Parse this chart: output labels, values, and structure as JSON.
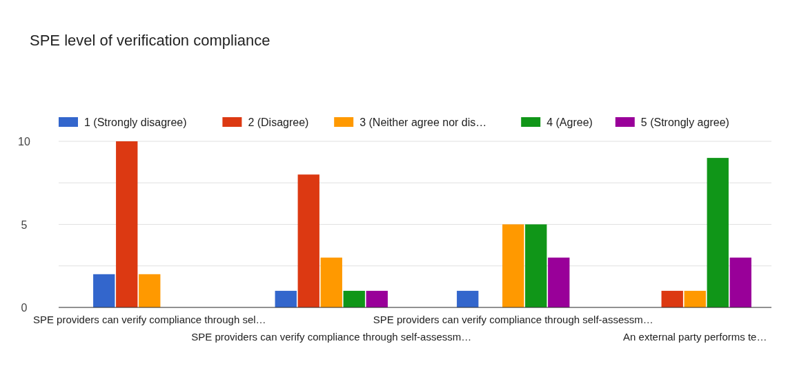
{
  "chart_data": {
    "type": "bar",
    "title": "SPE level of verification compliance",
    "categories": [
      "SPE providers can verify compliance through sel…",
      "SPE providers can verify compliance through self-assessm…",
      "SPE providers can verify compliance through self-assessm…",
      "An external party performs te…"
    ],
    "series": [
      {
        "name": "1 (Strongly disagree)",
        "color": "#3366cc",
        "values": [
          2,
          1,
          1,
          0
        ]
      },
      {
        "name": "2 (Disagree)",
        "color": "#dc3912",
        "values": [
          10,
          8,
          0,
          1
        ]
      },
      {
        "name": "3 (Neither agree nor dis…",
        "color": "#ff9900",
        "values": [
          2,
          3,
          5,
          1
        ]
      },
      {
        "name": "4 (Agree)",
        "color": "#109618",
        "values": [
          0,
          1,
          5,
          9
        ]
      },
      {
        "name": "5 (Strongly agree)",
        "color": "#990099",
        "values": [
          0,
          1,
          3,
          3
        ]
      }
    ],
    "ylim": [
      0,
      10
    ],
    "yticks": [
      0,
      {
        "value": 2.5,
        "label": null
      },
      5,
      {
        "value": 7.5,
        "label": null
      },
      10
    ],
    "grid": true,
    "legend": "top"
  }
}
